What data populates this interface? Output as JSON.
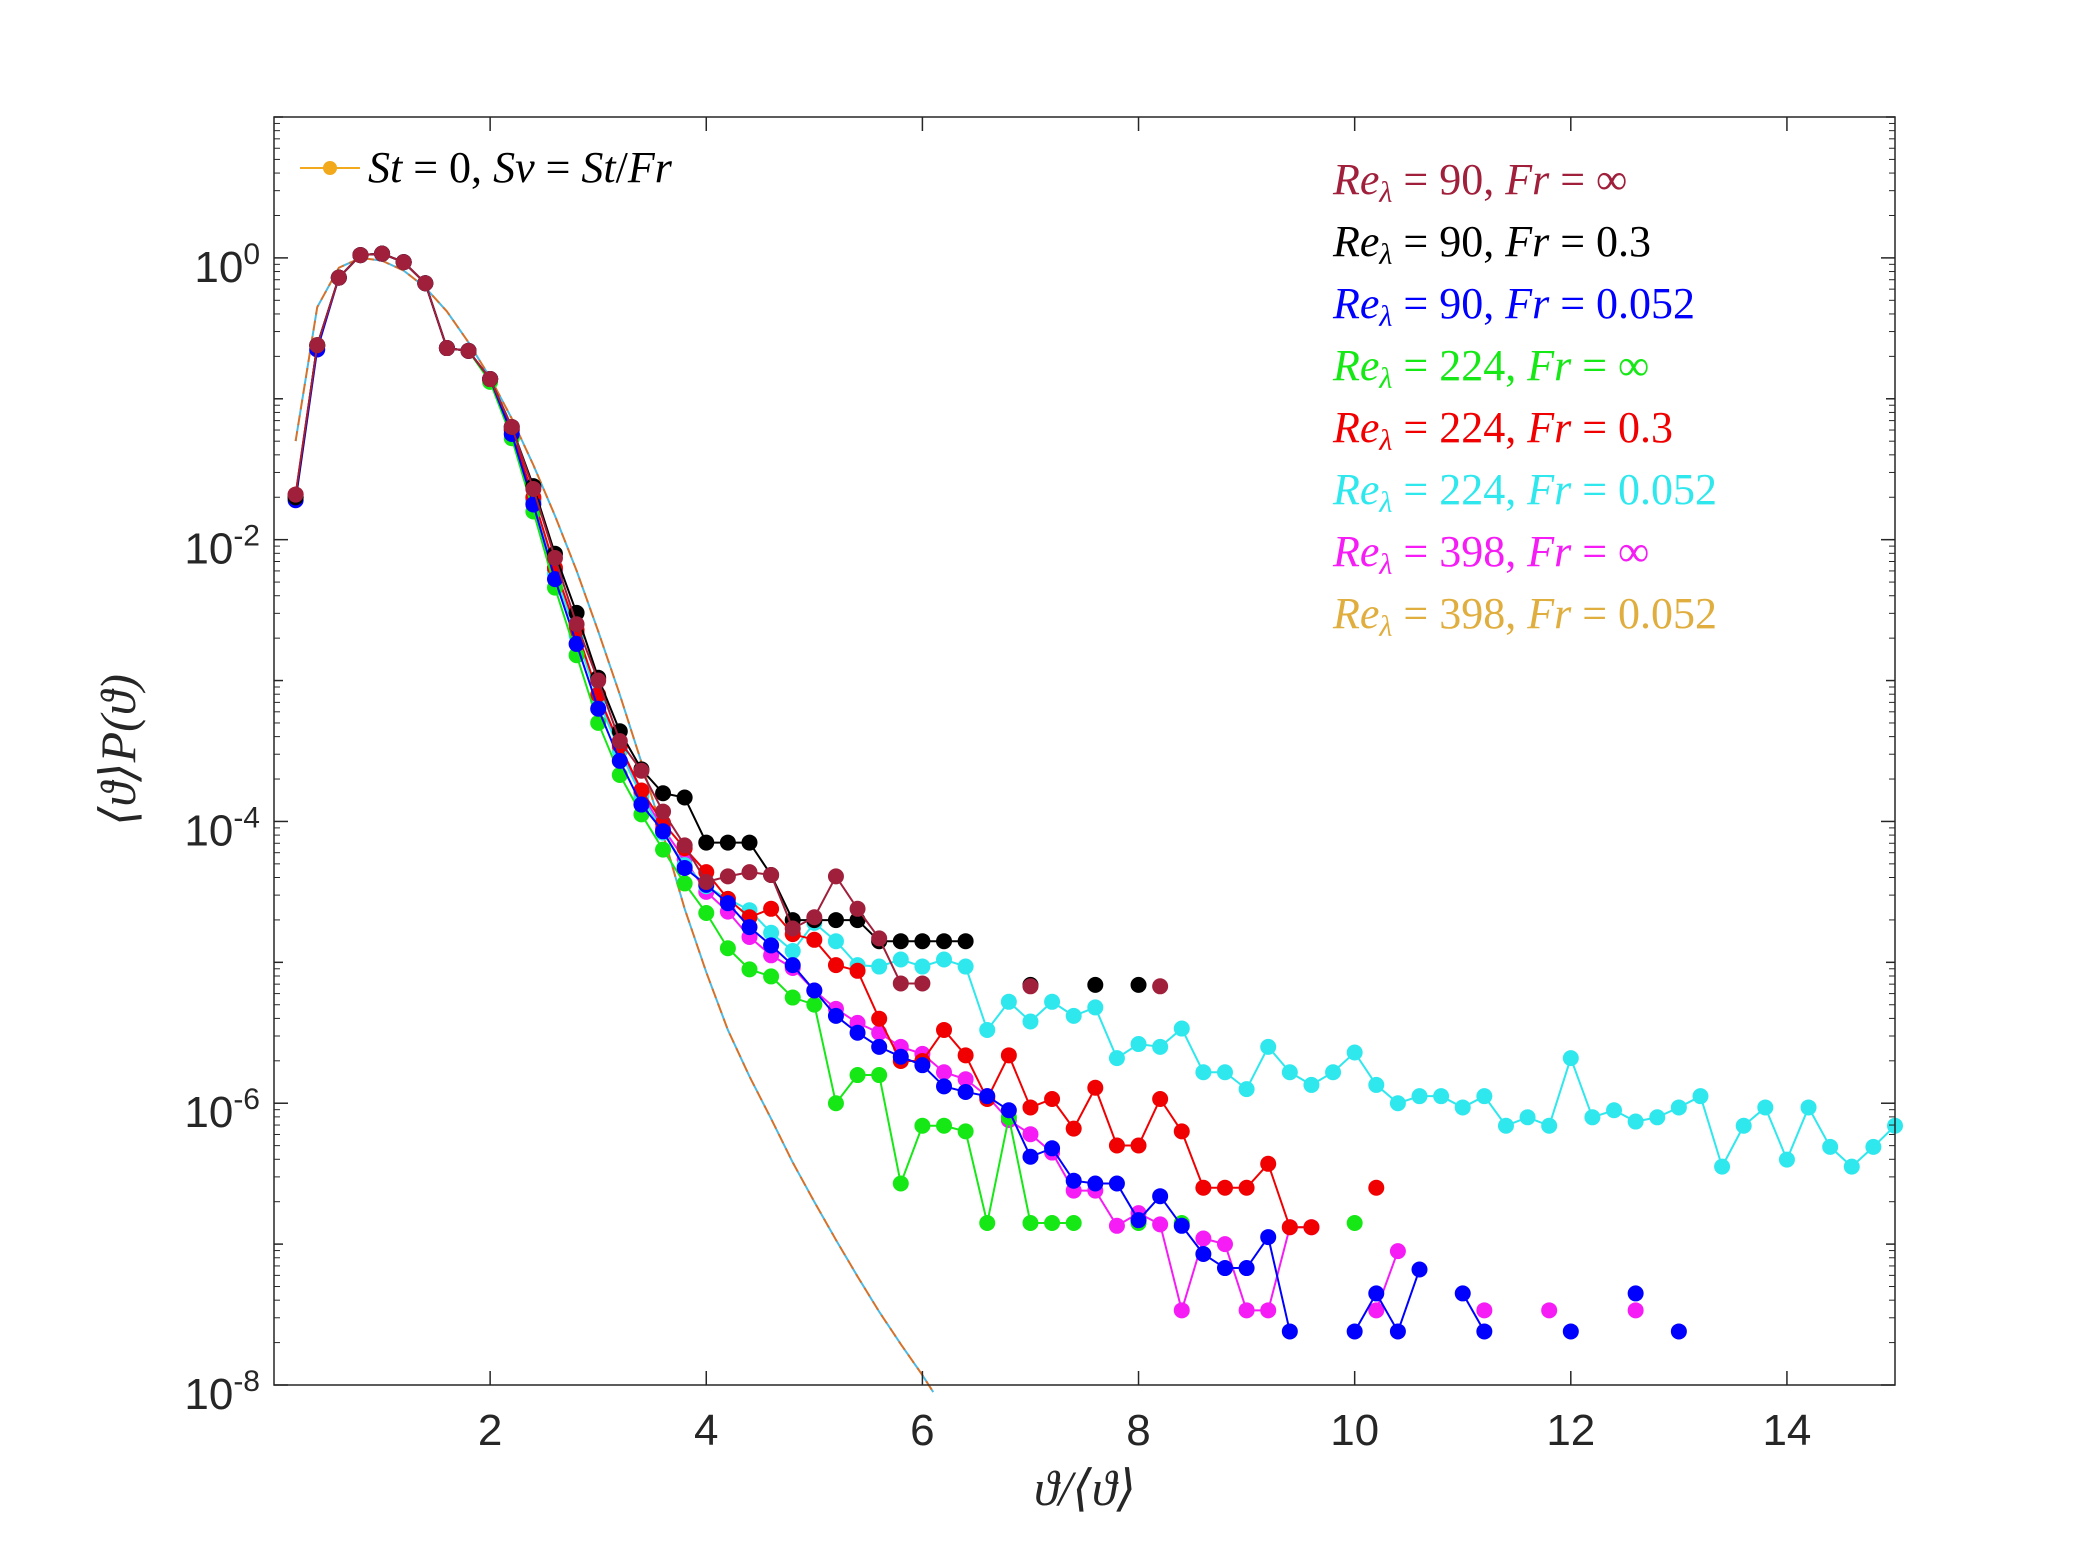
{
  "chart_data": {
    "type": "line",
    "title": "",
    "xlabel": "ϑ/⟨ϑ⟩",
    "ylabel": "⟨ϑ⟩P(ϑ)",
    "xlim": [
      0,
      15
    ],
    "ylim_log10": [
      -8,
      1
    ],
    "yscale": "log",
    "grid": false,
    "x_ticks": [
      2,
      4,
      6,
      8,
      10,
      12,
      14
    ],
    "x_tick_labels": [
      "2",
      "4",
      "6",
      "8",
      "10",
      "12",
      "14"
    ],
    "y_ticks_log10": [
      0,
      -2,
      -4,
      -6,
      -8
    ],
    "y_tick_labels": [
      {
        "base": "10",
        "exp": "0"
      },
      {
        "base": "10",
        "exp": "-2"
      },
      {
        "base": "10",
        "exp": "-4"
      },
      {
        "base": "10",
        "exp": "-6"
      },
      {
        "base": "10",
        "exp": "-8"
      }
    ],
    "reference": {
      "name": "St = 0, Sv = St/Fr",
      "color": "#f2a91c",
      "dash_colors": [
        "#d4722c",
        "#4db8e0"
      ],
      "curve_x": [
        0.2,
        0.4,
        0.6,
        0.8,
        1.0,
        1.2,
        1.4,
        1.6,
        1.8,
        2.0,
        2.2,
        2.4,
        2.6,
        2.8,
        3.0,
        3.2,
        3.4,
        3.6,
        3.8,
        4.0,
        4.2,
        4.4,
        4.6,
        4.8,
        5.0,
        5.2,
        5.4,
        5.6,
        5.8,
        6.0,
        6.1
      ],
      "curve_y_log10": [
        -1.3,
        -0.35,
        -0.07,
        0.0,
        -0.02,
        -0.09,
        -0.21,
        -0.38,
        -0.6,
        -0.85,
        -1.14,
        -1.47,
        -1.83,
        -2.22,
        -2.65,
        -3.1,
        -3.58,
        -4.09,
        -4.62,
        -5.07,
        -5.48,
        -5.81,
        -6.11,
        -6.42,
        -6.7,
        -6.97,
        -7.23,
        -7.48,
        -7.71,
        -7.93,
        -8.05
      ]
    },
    "series": [
      {
        "name": "Re_λ = 90, Fr = ∞",
        "label_parts": {
          "a": "Re",
          "b": "λ",
          "c": " = 90, ",
          "d": "Fr",
          "e": " = ∞"
        },
        "color": "#a0203c",
        "x": [
          0.2,
          0.4,
          0.6,
          0.8,
          1.0,
          1.2,
          1.4,
          1.6,
          1.8,
          2.0,
          2.2,
          2.4,
          2.6,
          2.8,
          3.0,
          3.2,
          3.4,
          3.6,
          3.8,
          4.0,
          4.2,
          4.4,
          4.6,
          4.8,
          5.0,
          5.2,
          5.4,
          5.6,
          5.8,
          6.0,
          7.0,
          8.2
        ],
        "y_log10": [
          -1.68,
          -0.62,
          -0.14,
          0.02,
          0.03,
          -0.03,
          -0.18,
          -0.64,
          -0.66,
          -0.86,
          -1.2,
          -1.64,
          -2.13,
          -2.6,
          -3.0,
          -3.43,
          -3.64,
          -3.93,
          -4.17,
          -4.43,
          -4.39,
          -4.36,
          -4.38,
          -4.76,
          -4.68,
          -4.39,
          -4.62,
          -4.83,
          -5.15,
          -5.15,
          -5.17,
          -5.17
        ]
      },
      {
        "name": "Re_λ = 90, Fr = 0.3",
        "label_parts": {
          "a": "Re",
          "b": "λ",
          "c": " = 90, ",
          "d": "Fr",
          "e": " = 0.3"
        },
        "color": "#000000",
        "x": [
          0.2,
          0.4,
          0.6,
          0.8,
          1.0,
          1.2,
          1.4,
          1.6,
          1.8,
          2.0,
          2.2,
          2.4,
          2.6,
          2.8,
          3.0,
          3.2,
          3.4,
          3.6,
          3.8,
          4.0,
          4.2,
          4.4,
          4.6,
          4.8,
          5.0,
          5.2,
          5.4,
          5.6,
          5.8,
          6.0,
          6.2,
          6.4,
          7.0,
          7.6,
          8.0
        ],
        "y_log10": [
          -1.7,
          -0.62,
          -0.14,
          0.02,
          0.03,
          -0.03,
          -0.18,
          -0.64,
          -0.66,
          -0.86,
          -1.2,
          -1.62,
          -2.1,
          -2.52,
          -2.98,
          -3.36,
          -3.63,
          -3.8,
          -3.83,
          -4.15,
          -4.15,
          -4.15,
          -4.38,
          -4.7,
          -4.7,
          -4.7,
          -4.7,
          -4.85,
          -4.85,
          -4.85,
          -4.85,
          -4.85,
          -5.16,
          -5.16,
          -5.16
        ]
      },
      {
        "name": "Re_λ = 90, Fr = 0.052",
        "label_parts": {
          "a": "Re",
          "b": "λ",
          "c": " = 90, ",
          "d": "Fr",
          "e": " = 0.052"
        },
        "color": "#0000ff",
        "x": [
          0.2,
          0.4,
          0.6,
          0.8,
          1.0,
          1.2,
          1.4,
          1.6,
          1.8,
          2.0,
          2.2,
          2.4,
          2.6,
          2.8,
          3.0,
          3.2,
          3.4,
          3.6,
          3.8,
          4.0,
          4.2,
          4.4,
          4.6,
          4.8,
          5.0,
          5.2,
          5.4,
          5.6,
          5.8,
          6.0,
          6.2,
          6.4,
          6.6,
          6.8,
          7.0,
          7.2,
          7.4,
          7.6,
          7.8,
          8.0,
          8.2,
          8.4,
          8.6,
          8.8,
          9.0,
          9.2,
          9.4,
          10.0,
          10.2,
          10.4,
          10.6,
          11.0,
          11.2,
          12.0,
          12.6,
          13.0
        ],
        "y_log10": [
          -1.72,
          -0.65,
          -0.14,
          0.02,
          0.03,
          -0.03,
          -0.18,
          -0.64,
          -0.66,
          -0.86,
          -1.25,
          -1.75,
          -2.28,
          -2.74,
          -3.2,
          -3.57,
          -3.88,
          -4.07,
          -4.33,
          -4.45,
          -4.58,
          -4.75,
          -4.88,
          -5.02,
          -5.2,
          -5.38,
          -5.5,
          -5.6,
          -5.67,
          -5.73,
          -5.88,
          -5.92,
          -5.95,
          -6.05,
          -6.38,
          -6.32,
          -6.55,
          -6.57,
          -6.57,
          -6.83,
          -6.66,
          -6.87,
          -7.07,
          -7.17,
          -7.17,
          -6.95,
          -7.62,
          -7.62,
          -7.35,
          -7.62,
          -7.18,
          -7.35,
          -7.62,
          -7.62,
          -7.35,
          -7.62
        ]
      },
      {
        "name": "Re_λ = 224, Fr = ∞",
        "label_parts": {
          "a": "Re",
          "b": "λ",
          "c": " = 224, ",
          "d": "Fr",
          "e": " = ∞"
        },
        "color": "#16e816",
        "x": [
          0.2,
          0.4,
          0.6,
          0.8,
          1.0,
          1.2,
          1.4,
          1.6,
          1.8,
          2.0,
          2.2,
          2.4,
          2.6,
          2.8,
          3.0,
          3.2,
          3.4,
          3.6,
          3.8,
          4.0,
          4.2,
          4.4,
          4.6,
          4.8,
          5.0,
          5.2,
          5.4,
          5.6,
          5.8,
          6.0,
          6.2,
          6.4,
          6.6,
          6.8,
          7.0,
          7.2,
          7.4,
          8.0,
          8.4,
          10.0
        ],
        "y_log10": [
          -1.7,
          -0.62,
          -0.14,
          0.02,
          0.03,
          -0.03,
          -0.18,
          -0.64,
          -0.66,
          -0.88,
          -1.28,
          -1.8,
          -2.34,
          -2.82,
          -3.3,
          -3.67,
          -3.95,
          -4.2,
          -4.44,
          -4.65,
          -4.9,
          -5.05,
          -5.1,
          -5.25,
          -5.3,
          -6.0,
          -5.8,
          -5.8,
          -6.57,
          -6.16,
          -6.16,
          -6.2,
          -6.85,
          -6.1,
          -6.85,
          -6.85,
          -6.85,
          -6.85,
          -6.85,
          -6.85
        ]
      },
      {
        "name": "Re_λ = 224, Fr = 0.3",
        "label_parts": {
          "a": "Re",
          "b": "λ",
          "c": " = 224, ",
          "d": "Fr",
          "e": " = 0.3"
        },
        "color": "#f00000",
        "x": [
          0.2,
          0.4,
          0.6,
          0.8,
          1.0,
          1.2,
          1.4,
          1.6,
          1.8,
          2.0,
          2.2,
          2.4,
          2.6,
          2.8,
          3.0,
          3.2,
          3.4,
          3.6,
          3.8,
          4.0,
          4.2,
          4.4,
          4.6,
          4.8,
          5.0,
          5.2,
          5.4,
          5.6,
          5.8,
          6.0,
          6.2,
          6.4,
          6.6,
          6.8,
          7.0,
          7.2,
          7.4,
          7.6,
          7.8,
          8.0,
          8.2,
          8.4,
          8.6,
          8.8,
          9.0,
          9.2,
          9.4,
          9.6,
          10.2
        ],
        "y_log10": [
          -1.68,
          -0.62,
          -0.14,
          0.02,
          0.03,
          -0.03,
          -0.18,
          -0.64,
          -0.66,
          -0.86,
          -1.22,
          -1.7,
          -2.2,
          -2.64,
          -3.1,
          -3.46,
          -3.78,
          -4.01,
          -4.19,
          -4.36,
          -4.55,
          -4.68,
          -4.62,
          -4.8,
          -4.84,
          -5.02,
          -5.06,
          -5.4,
          -5.7,
          -5.7,
          -5.48,
          -5.66,
          -5.97,
          -5.66,
          -6.03,
          -5.97,
          -6.18,
          -5.89,
          -6.3,
          -6.3,
          -5.97,
          -6.2,
          -6.6,
          -6.6,
          -6.6,
          -6.43,
          -6.88,
          -6.88,
          -6.6
        ]
      },
      {
        "name": "Re_λ = 224, Fr = 0.052",
        "label_parts": {
          "a": "Re",
          "b": "λ",
          "c": " = 224, ",
          "d": "Fr",
          "e": " = 0.052"
        },
        "color": "#2ee8ee",
        "x": [
          0.2,
          0.4,
          0.6,
          0.8,
          1.0,
          1.2,
          1.4,
          1.6,
          1.8,
          2.0,
          2.2,
          2.4,
          2.6,
          2.8,
          3.0,
          3.2,
          3.4,
          3.6,
          3.8,
          4.0,
          4.2,
          4.4,
          4.6,
          4.8,
          5.0,
          5.2,
          5.4,
          5.6,
          5.8,
          6.0,
          6.2,
          6.4,
          6.6,
          6.8,
          7.0,
          7.2,
          7.4,
          7.6,
          7.8,
          8.0,
          8.2,
          8.4,
          8.6,
          8.8,
          9.0,
          9.2,
          9.4,
          9.6,
          9.8,
          10.0,
          10.2,
          10.4,
          10.6,
          10.8,
          11.0,
          11.2,
          11.4,
          11.6,
          11.8,
          12.0,
          12.2,
          12.4,
          12.6,
          12.8,
          13.0,
          13.2,
          13.4,
          13.6,
          13.8,
          14.0,
          14.2,
          14.4,
          14.6,
          14.8,
          15.0
        ],
        "y_log10": [
          -1.7,
          -0.62,
          -0.14,
          0.02,
          0.03,
          -0.03,
          -0.18,
          -0.64,
          -0.66,
          -0.86,
          -1.22,
          -1.72,
          -2.24,
          -2.68,
          -3.14,
          -3.5,
          -3.82,
          -4.08,
          -4.31,
          -4.46,
          -4.55,
          -4.63,
          -4.79,
          -4.92,
          -4.72,
          -4.85,
          -5.02,
          -5.03,
          -4.98,
          -5.03,
          -4.98,
          -5.03,
          -5.48,
          -5.28,
          -5.42,
          -5.28,
          -5.38,
          -5.32,
          -5.68,
          -5.58,
          -5.6,
          -5.47,
          -5.78,
          -5.78,
          -5.9,
          -5.6,
          -5.78,
          -5.87,
          -5.78,
          -5.64,
          -5.87,
          -6.0,
          -5.95,
          -5.95,
          -6.03,
          -5.95,
          -6.16,
          -6.1,
          -6.16,
          -5.68,
          -6.1,
          -6.05,
          -6.13,
          -6.1,
          -6.03,
          -5.95,
          -6.45,
          -6.16,
          -6.03,
          -6.4,
          -6.03,
          -6.31,
          -6.45,
          -6.31,
          -6.16
        ]
      },
      {
        "name": "Re_λ = 398, Fr = ∞",
        "label_parts": {
          "a": "Re",
          "b": "λ",
          "c": " = 398, ",
          "d": "Fr",
          "e": " = ∞"
        },
        "color": "#f51cf5",
        "x": [
          0.2,
          0.4,
          0.6,
          0.8,
          1.0,
          1.2,
          1.4,
          1.6,
          1.8,
          2.0,
          2.2,
          2.4,
          2.6,
          2.8,
          3.0,
          3.2,
          3.4,
          3.6,
          3.8,
          4.0,
          4.2,
          4.4,
          4.6,
          4.8,
          5.0,
          5.2,
          5.4,
          5.6,
          5.8,
          6.0,
          6.2,
          6.4,
          6.6,
          6.8,
          7.0,
          7.2,
          7.4,
          7.6,
          7.8,
          8.0,
          8.2,
          8.4,
          8.6,
          8.8,
          9.0,
          9.2,
          9.4,
          9.6,
          10.2,
          10.4,
          11.2,
          11.8,
          12.6
        ],
        "y_log10": [
          -1.7,
          -0.62,
          -0.14,
          0.02,
          0.03,
          -0.03,
          -0.18,
          -0.64,
          -0.66,
          -0.86,
          -1.22,
          -1.72,
          -2.22,
          -2.66,
          -3.12,
          -3.48,
          -3.8,
          -4.05,
          -4.27,
          -4.5,
          -4.64,
          -4.82,
          -4.95,
          -5.04,
          -5.2,
          -5.33,
          -5.43,
          -5.5,
          -5.6,
          -5.65,
          -5.78,
          -5.83,
          -5.95,
          -6.12,
          -6.22,
          -6.35,
          -6.62,
          -6.62,
          -6.87,
          -6.78,
          -6.86,
          -7.47,
          -6.96,
          -7.0,
          -7.47,
          -7.47,
          -6.88,
          -6.88,
          -7.47,
          -7.05,
          -7.47,
          -7.47,
          -7.47
        ]
      },
      {
        "name": "Re_λ = 398, Fr = 0.052",
        "label_parts": {
          "a": "Re",
          "b": "λ",
          "c": " = 398, ",
          "d": "Fr",
          "e": " = 0.052"
        },
        "color": "#e0ae3e",
        "x": [],
        "y_log10": []
      }
    ],
    "legend": {
      "position": "top-left + top-right",
      "reference_entry": {
        "a": "St",
        "b": " = 0, ",
        "c": "Sv",
        "d": " = ",
        "e": "St",
        "f": "/",
        "g": "Fr"
      }
    }
  }
}
